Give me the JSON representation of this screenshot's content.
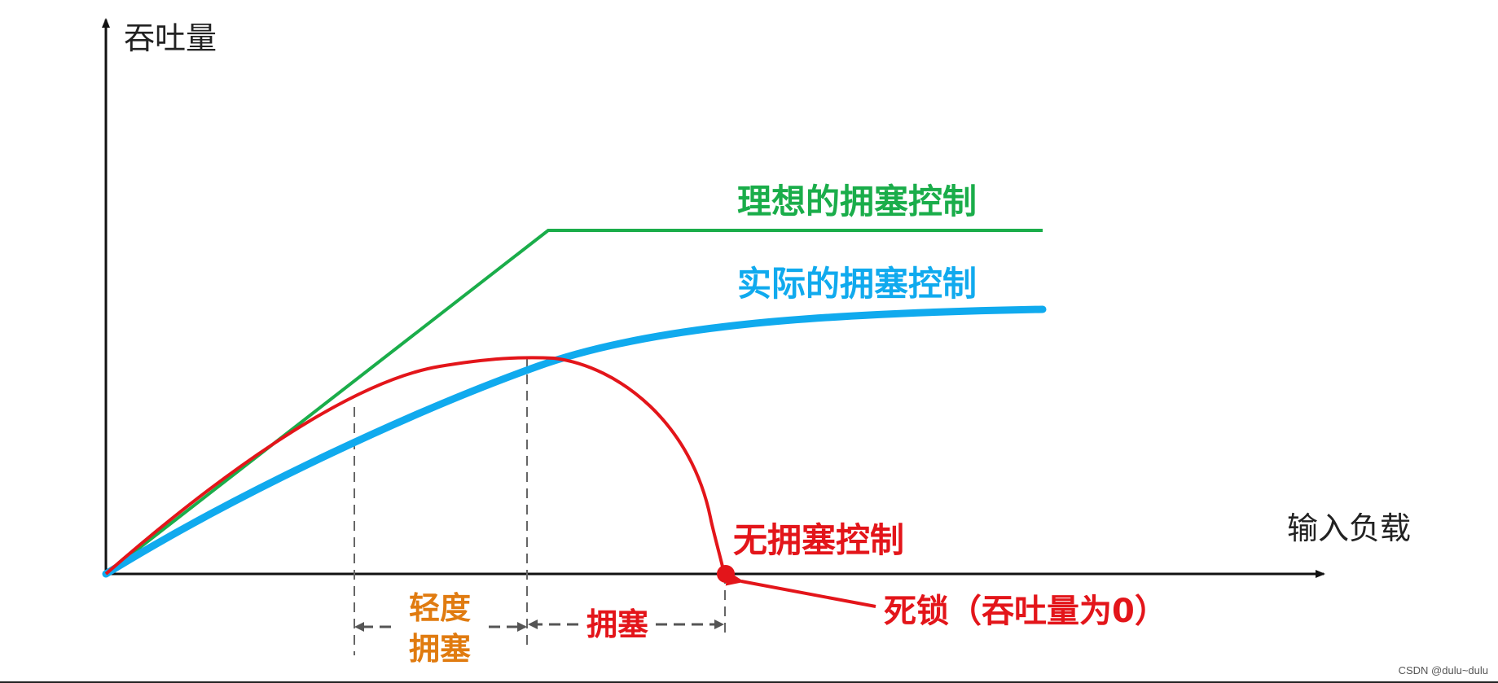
{
  "labels": {
    "y_axis": "吞吐量",
    "x_axis": "输入负载",
    "ideal": "理想的拥塞控制",
    "actual": "实际的拥塞控制",
    "none": "无拥塞控制",
    "light_congestion_line1": "轻度",
    "light_congestion_line2": "拥塞",
    "congestion": "拥塞",
    "deadlock": "死锁（吞吐量为0）"
  },
  "watermark": "CSDN @dulu~dulu",
  "colors": {
    "ideal": "#1aad4a",
    "actual": "#10aaee",
    "none": "#e3151a",
    "light_congestion": "#e07b10",
    "axis": "#111111",
    "dashed": "#666666"
  }
}
